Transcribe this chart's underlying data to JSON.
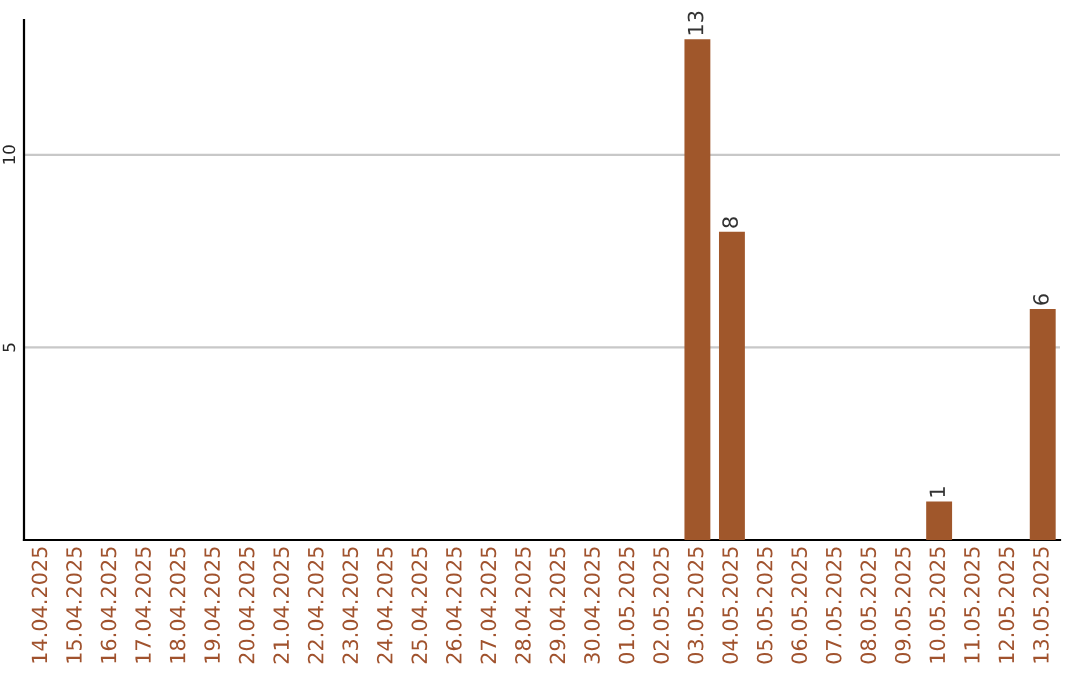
{
  "chart_data": {
    "type": "bar",
    "categories": [
      "14.04.2025",
      "15.04.2025",
      "16.04.2025",
      "17.04.2025",
      "18.04.2025",
      "19.04.2025",
      "20.04.2025",
      "21.04.2025",
      "22.04.2025",
      "23.04.2025",
      "24.04.2025",
      "25.04.2025",
      "26.04.2025",
      "27.04.2025",
      "28.04.2025",
      "29.04.2025",
      "30.04.2025",
      "01.05.2025",
      "02.05.2025",
      "03.05.2025",
      "04.05.2025",
      "05.05.2025",
      "06.05.2025",
      "07.05.2025",
      "08.05.2025",
      "09.05.2025",
      "10.05.2025",
      "11.05.2025",
      "12.05.2025",
      "13.05.2025"
    ],
    "values": [
      0,
      0,
      0,
      0,
      0,
      0,
      0,
      0,
      0,
      0,
      0,
      0,
      0,
      0,
      0,
      0,
      0,
      0,
      0,
      13,
      8,
      0,
      0,
      0,
      0,
      0,
      1,
      0,
      0,
      6
    ],
    "value_labels": [
      null,
      null,
      null,
      null,
      null,
      null,
      null,
      null,
      null,
      null,
      null,
      null,
      null,
      null,
      null,
      null,
      null,
      null,
      null,
      "13",
      "8",
      null,
      null,
      null,
      null,
      null,
      "1",
      null,
      null,
      "6"
    ],
    "color": "#a0572b",
    "ylim": [
      0,
      13.5
    ],
    "yticks": [
      5,
      10
    ],
    "grid": "y",
    "legend": false
  }
}
